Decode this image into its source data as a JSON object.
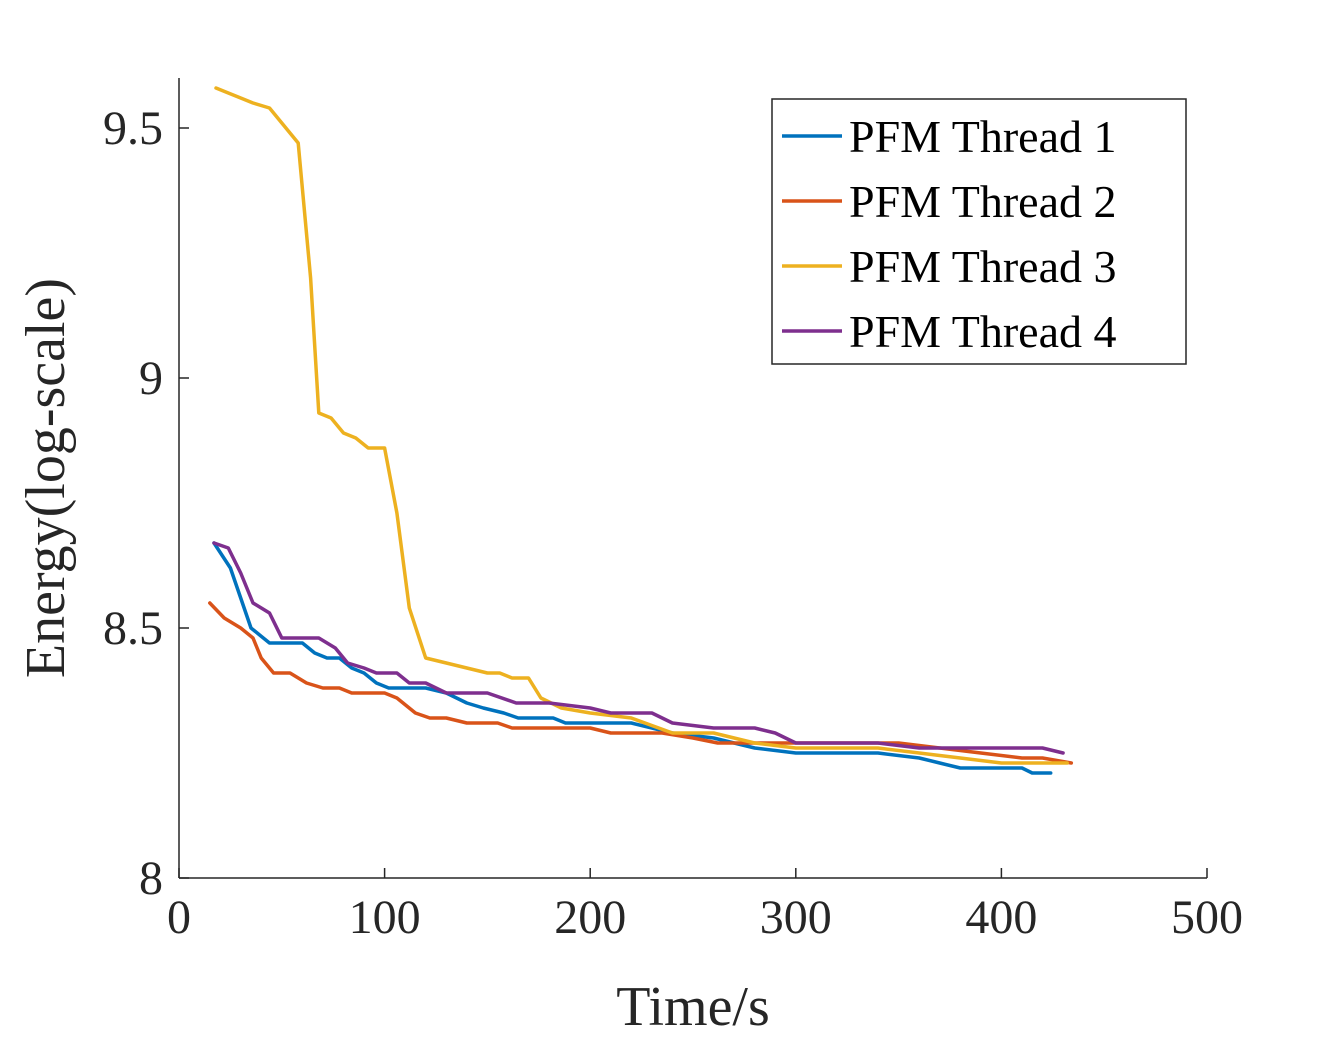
{
  "chart_data": {
    "type": "line",
    "title": "",
    "xlabel": "Time/s",
    "ylabel": "Energy(log-scale)",
    "xlim": [
      0,
      500
    ],
    "ylim": [
      8,
      9.6
    ],
    "xticks": [
      0,
      100,
      200,
      300,
      400,
      500
    ],
    "xtick_labels": [
      "0",
      "100",
      "200",
      "300",
      "400",
      "500"
    ],
    "yticks": [
      8,
      8.5,
      9,
      9.5
    ],
    "ytick_labels": [
      "8",
      "8.5",
      "9",
      "9.5"
    ],
    "grid": false,
    "legend_position": "top-right",
    "series": [
      {
        "name": "PFM Thread 1",
        "color": "#0072BD",
        "x": [
          17,
          25,
          30,
          35,
          44,
          50,
          60,
          66,
          72,
          78,
          84,
          90,
          96,
          102,
          110,
          120,
          130,
          140,
          148,
          158,
          165,
          175,
          182,
          188,
          200,
          220,
          230,
          240,
          260,
          280,
          300,
          320,
          340,
          360,
          370,
          380,
          400,
          410,
          415,
          424
        ],
        "y": [
          8.67,
          8.62,
          8.56,
          8.5,
          8.47,
          8.47,
          8.47,
          8.45,
          8.44,
          8.44,
          8.42,
          8.41,
          8.39,
          8.38,
          8.38,
          8.38,
          8.37,
          8.35,
          8.34,
          8.33,
          8.32,
          8.32,
          8.32,
          8.31,
          8.31,
          8.31,
          8.3,
          8.29,
          8.28,
          8.26,
          8.25,
          8.25,
          8.25,
          8.24,
          8.23,
          8.22,
          8.22,
          8.22,
          8.21,
          8.21
        ]
      },
      {
        "name": "PFM Thread 2",
        "color": "#D95319",
        "x": [
          15,
          22,
          30,
          36,
          40,
          46,
          54,
          62,
          70,
          78,
          84,
          92,
          100,
          106,
          115,
          122,
          130,
          140,
          155,
          162,
          172,
          180,
          200,
          210,
          225,
          235,
          250,
          262,
          275,
          290,
          310,
          330,
          350,
          370,
          390,
          410,
          420,
          434
        ],
        "y": [
          8.55,
          8.52,
          8.5,
          8.48,
          8.44,
          8.41,
          8.41,
          8.39,
          8.38,
          8.38,
          8.37,
          8.37,
          8.37,
          8.36,
          8.33,
          8.32,
          8.32,
          8.31,
          8.31,
          8.3,
          8.3,
          8.3,
          8.3,
          8.29,
          8.29,
          8.29,
          8.28,
          8.27,
          8.27,
          8.27,
          8.27,
          8.27,
          8.27,
          8.26,
          8.25,
          8.24,
          8.24,
          8.23
        ]
      },
      {
        "name": "PFM Thread 3",
        "color": "#EDB120",
        "x": [
          18,
          24,
          30,
          36,
          44,
          52,
          58,
          64,
          68,
          74,
          80,
          86,
          92,
          100,
          106,
          112,
          120,
          130,
          140,
          150,
          156,
          162,
          170,
          176,
          186,
          200,
          220,
          240,
          260,
          280,
          300,
          320,
          340,
          360,
          380,
          400,
          420,
          432
        ],
        "y": [
          9.58,
          9.57,
          9.56,
          9.55,
          9.54,
          9.5,
          9.47,
          9.2,
          8.93,
          8.92,
          8.89,
          8.88,
          8.86,
          8.86,
          8.73,
          8.54,
          8.44,
          8.43,
          8.42,
          8.41,
          8.41,
          8.4,
          8.4,
          8.36,
          8.34,
          8.33,
          8.32,
          8.29,
          8.29,
          8.27,
          8.26,
          8.26,
          8.26,
          8.25,
          8.24,
          8.23,
          8.23,
          8.23
        ]
      },
      {
        "name": "PFM Thread 4",
        "color": "#7E2F8E",
        "x": [
          17,
          24,
          30,
          36,
          44,
          50,
          56,
          62,
          68,
          76,
          82,
          90,
          96,
          106,
          112,
          120,
          130,
          150,
          164,
          180,
          200,
          210,
          230,
          240,
          260,
          280,
          290,
          300,
          320,
          340,
          360,
          380,
          400,
          410,
          420,
          430
        ],
        "y": [
          8.67,
          8.66,
          8.61,
          8.55,
          8.53,
          8.48,
          8.48,
          8.48,
          8.48,
          8.46,
          8.43,
          8.42,
          8.41,
          8.41,
          8.39,
          8.39,
          8.37,
          8.37,
          8.35,
          8.35,
          8.34,
          8.33,
          8.33,
          8.31,
          8.3,
          8.3,
          8.29,
          8.27,
          8.27,
          8.27,
          8.26,
          8.26,
          8.26,
          8.26,
          8.26,
          8.25
        ]
      }
    ]
  }
}
